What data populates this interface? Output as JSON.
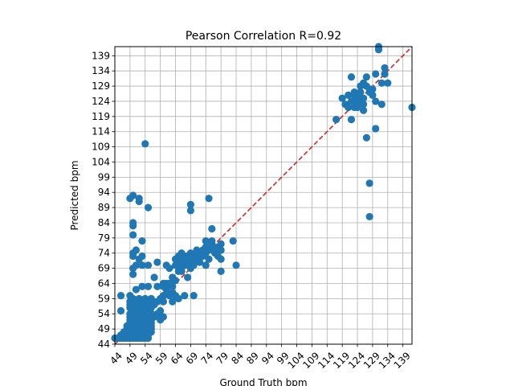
{
  "chart_data": {
    "type": "scatter",
    "title": "Pearson Correlation R=0.92",
    "xlabel": "Ground Truth bpm",
    "ylabel": "Predicted bpm",
    "xlim": [
      44,
      142
    ],
    "ylim": [
      44,
      142
    ],
    "xticks": [
      44,
      49,
      54,
      59,
      64,
      69,
      74,
      79,
      84,
      89,
      94,
      99,
      104,
      109,
      114,
      119,
      124,
      129,
      134,
      139
    ],
    "yticks": [
      44,
      49,
      54,
      59,
      64,
      69,
      74,
      79,
      84,
      89,
      94,
      99,
      104,
      109,
      114,
      119,
      124,
      129,
      134,
      139
    ],
    "grid": true,
    "identity_line": {
      "from": [
        44,
        44
      ],
      "to": [
        142,
        142
      ],
      "color": "#d62728",
      "style": "dashed"
    },
    "marker_color": "#1f77b4",
    "points": [
      [
        44,
        46
      ],
      [
        45,
        46
      ],
      [
        46,
        46
      ],
      [
        47,
        46
      ],
      [
        48,
        46
      ],
      [
        49,
        46
      ],
      [
        50,
        46
      ],
      [
        51,
        46
      ],
      [
        52,
        46
      ],
      [
        53,
        46
      ],
      [
        54,
        46
      ],
      [
        55,
        46
      ],
      [
        46,
        47
      ],
      [
        47,
        47
      ],
      [
        48,
        47
      ],
      [
        49,
        47
      ],
      [
        50,
        47
      ],
      [
        51,
        47
      ],
      [
        52,
        47
      ],
      [
        53,
        47
      ],
      [
        54,
        47
      ],
      [
        55,
        47
      ],
      [
        47,
        48
      ],
      [
        48,
        48
      ],
      [
        49,
        48
      ],
      [
        50,
        48
      ],
      [
        51,
        48
      ],
      [
        52,
        48
      ],
      [
        53,
        48
      ],
      [
        54,
        48
      ],
      [
        55,
        48
      ],
      [
        56,
        48
      ],
      [
        48,
        49
      ],
      [
        49,
        49
      ],
      [
        50,
        49
      ],
      [
        51,
        49
      ],
      [
        52,
        49
      ],
      [
        53,
        49
      ],
      [
        54,
        49
      ],
      [
        55,
        49
      ],
      [
        56,
        49
      ],
      [
        48,
        50
      ],
      [
        49,
        50
      ],
      [
        50,
        50
      ],
      [
        51,
        50
      ],
      [
        52,
        50
      ],
      [
        53,
        50
      ],
      [
        54,
        50
      ],
      [
        55,
        50
      ],
      [
        56,
        50
      ],
      [
        49,
        51
      ],
      [
        50,
        51
      ],
      [
        51,
        51
      ],
      [
        52,
        51
      ],
      [
        53,
        51
      ],
      [
        54,
        51
      ],
      [
        55,
        51
      ],
      [
        56,
        51
      ],
      [
        49,
        52
      ],
      [
        50,
        52
      ],
      [
        51,
        52
      ],
      [
        52,
        52
      ],
      [
        53,
        52
      ],
      [
        54,
        52
      ],
      [
        55,
        52
      ],
      [
        56,
        52
      ],
      [
        49,
        53
      ],
      [
        50,
        53
      ],
      [
        51,
        53
      ],
      [
        52,
        53
      ],
      [
        53,
        53
      ],
      [
        54,
        53
      ],
      [
        55,
        53
      ],
      [
        56,
        53
      ],
      [
        49,
        54
      ],
      [
        50,
        54
      ],
      [
        51,
        54
      ],
      [
        52,
        54
      ],
      [
        53,
        54
      ],
      [
        55,
        54
      ],
      [
        56,
        54
      ],
      [
        46,
        55
      ],
      [
        50,
        55
      ],
      [
        51,
        55
      ],
      [
        52,
        55
      ],
      [
        53,
        55
      ],
      [
        54,
        55
      ],
      [
        55,
        55
      ],
      [
        49,
        56
      ],
      [
        50,
        56
      ],
      [
        52,
        56
      ],
      [
        53,
        56
      ],
      [
        54,
        56
      ],
      [
        56,
        56
      ],
      [
        49,
        57
      ],
      [
        51,
        57
      ],
      [
        53,
        57
      ],
      [
        55,
        57
      ],
      [
        49,
        58
      ],
      [
        51,
        58
      ],
      [
        53,
        58
      ],
      [
        55,
        58
      ],
      [
        46,
        60
      ],
      [
        49,
        60
      ],
      [
        50,
        59
      ],
      [
        52,
        59
      ],
      [
        54,
        59
      ],
      [
        56,
        59
      ],
      [
        51,
        62
      ],
      [
        53,
        63
      ],
      [
        55,
        63
      ],
      [
        50,
        67
      ],
      [
        50,
        69
      ],
      [
        51,
        70
      ],
      [
        53,
        70
      ],
      [
        55,
        70
      ],
      [
        50,
        73
      ],
      [
        50,
        74
      ],
      [
        51,
        75
      ],
      [
        52,
        72
      ],
      [
        53,
        73
      ],
      [
        50,
        83
      ],
      [
        50,
        80
      ],
      [
        50,
        84
      ],
      [
        53,
        78
      ],
      [
        49,
        92
      ],
      [
        50,
        93
      ],
      [
        52,
        91
      ],
      [
        52,
        92
      ],
      [
        55,
        89
      ],
      [
        54,
        110
      ],
      [
        57,
        53
      ],
      [
        58,
        54
      ],
      [
        59,
        52
      ],
      [
        59,
        55
      ],
      [
        60,
        53
      ],
      [
        59,
        59
      ],
      [
        60,
        60
      ],
      [
        60,
        58
      ],
      [
        57,
        57
      ],
      [
        57,
        58
      ],
      [
        58,
        58
      ],
      [
        57,
        66
      ],
      [
        58,
        71
      ],
      [
        58,
        63
      ],
      [
        60,
        64
      ],
      [
        60,
        63
      ],
      [
        61,
        62
      ],
      [
        61,
        64
      ],
      [
        61,
        70
      ],
      [
        62,
        69
      ],
      [
        62,
        64
      ],
      [
        62,
        60
      ],
      [
        63,
        61
      ],
      [
        63,
        66
      ],
      [
        63,
        63
      ],
      [
        63,
        58
      ],
      [
        64,
        60
      ],
      [
        64,
        65
      ],
      [
        65,
        68
      ],
      [
        65,
        59
      ],
      [
        64,
        70
      ],
      [
        64,
        72
      ],
      [
        65,
        71
      ],
      [
        65,
        73
      ],
      [
        65,
        70
      ],
      [
        66,
        69
      ],
      [
        66,
        72
      ],
      [
        66,
        74
      ],
      [
        66,
        68
      ],
      [
        67,
        70
      ],
      [
        67,
        72
      ],
      [
        67,
        73
      ],
      [
        67,
        71
      ],
      [
        68,
        70
      ],
      [
        68,
        72
      ],
      [
        68,
        73
      ],
      [
        68,
        66
      ],
      [
        69,
        71
      ],
      [
        69,
        73
      ],
      [
        69,
        74
      ],
      [
        69,
        69
      ],
      [
        69,
        88
      ],
      [
        69,
        90
      ],
      [
        70,
        70
      ],
      [
        70,
        72
      ],
      [
        70,
        73
      ],
      [
        71,
        72
      ],
      [
        71,
        74
      ],
      [
        71,
        75
      ],
      [
        72,
        73
      ],
      [
        72,
        74
      ],
      [
        72,
        71
      ],
      [
        70,
        60
      ],
      [
        67,
        60
      ],
      [
        73,
        73
      ],
      [
        73,
        75
      ],
      [
        73,
        74
      ],
      [
        74,
        78
      ],
      [
        74,
        76
      ],
      [
        74,
        74
      ],
      [
        74,
        70
      ],
      [
        75,
        72
      ],
      [
        75,
        92
      ],
      [
        75,
        75
      ],
      [
        76,
        76
      ],
      [
        76,
        77
      ],
      [
        76,
        78
      ],
      [
        76,
        82
      ],
      [
        77,
        74
      ],
      [
        77,
        75
      ],
      [
        78,
        76
      ],
      [
        78,
        73
      ],
      [
        79,
        72
      ],
      [
        79,
        68
      ],
      [
        79,
        77
      ],
      [
        79,
        75
      ],
      [
        83,
        78
      ],
      [
        84,
        70
      ],
      [
        117,
        118
      ],
      [
        119,
        125
      ],
      [
        120,
        123
      ],
      [
        121,
        126
      ],
      [
        121,
        122
      ],
      [
        122,
        124
      ],
      [
        122,
        132
      ],
      [
        122,
        118
      ],
      [
        123,
        122
      ],
      [
        123,
        126
      ],
      [
        123,
        124
      ],
      [
        123,
        127
      ],
      [
        124,
        125
      ],
      [
        124,
        122
      ],
      [
        124,
        123
      ],
      [
        124,
        126
      ],
      [
        125,
        129
      ],
      [
        125,
        124
      ],
      [
        125,
        127
      ],
      [
        126,
        123
      ],
      [
        126,
        121
      ],
      [
        126,
        125
      ],
      [
        126,
        130
      ],
      [
        127,
        132
      ],
      [
        127,
        129
      ],
      [
        127,
        112
      ],
      [
        128,
        127
      ],
      [
        128,
        128
      ],
      [
        128,
        97
      ],
      [
        128,
        86
      ],
      [
        129,
        126
      ],
      [
        129,
        128
      ],
      [
        130,
        133
      ],
      [
        130,
        124
      ],
      [
        130,
        115
      ],
      [
        131,
        141
      ],
      [
        131,
        142
      ],
      [
        132,
        130
      ],
      [
        132,
        123
      ],
      [
        133,
        135
      ],
      [
        133,
        133
      ],
      [
        133,
        133
      ],
      [
        134,
        130
      ],
      [
        142,
        122
      ]
    ]
  }
}
